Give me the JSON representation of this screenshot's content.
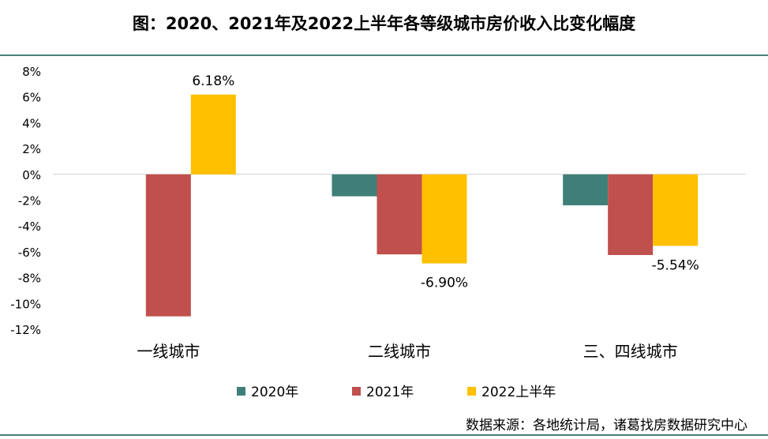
{
  "title": "图：2020、2021年及2022上半年各等级城市房价收入比变化幅度",
  "source": "数据来源：各地统计局，诸葛找房数据研究中心",
  "chart_data": {
    "type": "bar",
    "categories": [
      "一线城市",
      "二线城市",
      "三、四线城市"
    ],
    "series": [
      {
        "name": "2020年",
        "color": "#3f7f78",
        "values": [
          0,
          -1.7,
          -2.4
        ]
      },
      {
        "name": "2021年",
        "color": "#c0504d",
        "values": [
          -11.0,
          -6.2,
          -6.25
        ]
      },
      {
        "name": "2022上半年",
        "color": "#ffc000",
        "values": [
          6.18,
          -6.9,
          -5.54
        ]
      }
    ],
    "data_labels": [
      {
        "series": 2,
        "category": 0,
        "text": "6.18%"
      },
      {
        "series": 2,
        "category": 1,
        "text": "-6.90%"
      },
      {
        "series": 2,
        "category": 2,
        "text": "-5.54%"
      }
    ],
    "ylim": [
      -12,
      8
    ],
    "yticks": [
      8,
      6,
      4,
      2,
      0,
      -2,
      -4,
      -6,
      -8,
      -10,
      -12
    ],
    "ytick_labels": [
      "8%",
      "6%",
      "4%",
      "2%",
      "0%",
      "-2%",
      "-4%",
      "-6%",
      "-8%",
      "-10%",
      "-12%"
    ],
    "xlabel": "",
    "ylabel": "",
    "grid": false,
    "legend": "bottom"
  }
}
